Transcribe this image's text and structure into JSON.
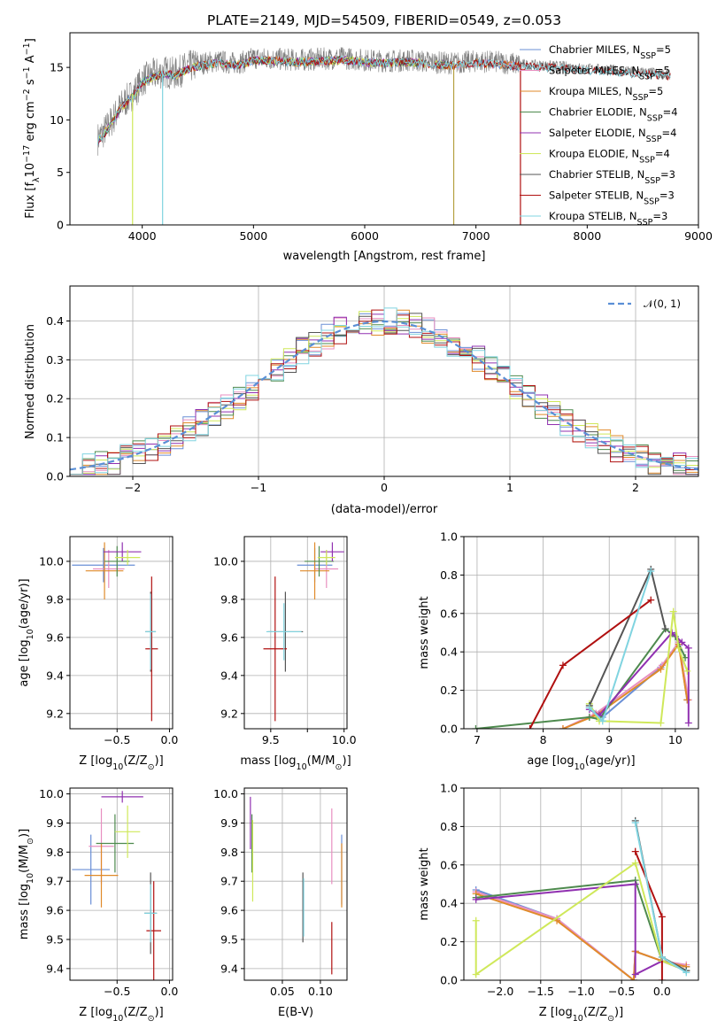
{
  "colors": {
    "Chabrier MILES": "#6a8fd6",
    "Salpeter MILES": "#e88fc0",
    "Kroupa MILES": "#e08a2a",
    "Chabrier ELODIE": "#4e8a4e",
    "Salpeter ELODIE": "#9030b0",
    "Kroupa ELODIE": "#cfe85a",
    "Chabrier STELIB": "#555555",
    "Salpeter STELIB": "#b01010",
    "Kroupa STELIB": "#80d4e0"
  },
  "chart_data": [
    {
      "id": "spectrum",
      "type": "line",
      "title": "PLATE=2149, MJD=54509, FIBERID=0549, z=0.053",
      "xlabel": "wavelength [Angstrom, rest frame]",
      "ylabel": "Flux [f",
      "ylabel_sub": "λ",
      "ylabel_mid": "10",
      "ylabel_sup": "−17",
      "ylabel_tail": " erg cm",
      "ylabel_sup2": "−2",
      "ylabel_tail2": " s",
      "ylabel_sup3": "−1",
      "ylabel_tail3": " A",
      "ylabel_sup4": "−1",
      "ylabel_end": "]",
      "xlim": [
        3350,
        9000
      ],
      "ylim": [
        0,
        18.3
      ],
      "xticks": [
        4000,
        5000,
        6000,
        7000,
        8000,
        9000
      ],
      "yticks": [
        0,
        5,
        10,
        15
      ],
      "legend_position": "right",
      "series": [
        {
          "name": "Chabrier MILES, N",
          "sub": "SSP",
          "tail": "=5"
        },
        {
          "name": "Salpeter MILES, N",
          "sub": "SSP",
          "tail": "=5"
        },
        {
          "name": "Kroupa MILES, N",
          "sub": "SSP",
          "tail": "=5"
        },
        {
          "name": "Chabrier ELODIE, N",
          "sub": "SSP",
          "tail": "=4"
        },
        {
          "name": "Salpeter ELODIE, N",
          "sub": "SSP",
          "tail": "=4"
        },
        {
          "name": "Kroupa ELODIE, N",
          "sub": "SSP",
          "tail": "=4"
        },
        {
          "name": "Chabrier STELIB, N",
          "sub": "SSP",
          "tail": "=3"
        },
        {
          "name": "Salpeter STELIB, N",
          "sub": "SSP",
          "tail": "=3"
        },
        {
          "name": "Kroupa STELIB, N",
          "sub": "SSP",
          "tail": "=3"
        }
      ],
      "observed": {
        "wavelength": [
          3600,
          3650,
          3700,
          3750,
          3800,
          3850,
          3900,
          3950,
          4000,
          4100,
          4200,
          4300,
          4400,
          4500,
          4600,
          4700,
          4800,
          4900,
          5000,
          5200,
          5400,
          5600,
          5800,
          6000,
          6200,
          6400,
          6600,
          6800,
          7000,
          7200,
          7400,
          7600,
          7800,
          8000,
          8200,
          8400,
          8600,
          8750
        ],
        "flux": [
          8.2,
          8.8,
          9.5,
          10.3,
          11.2,
          11.8,
          12.3,
          12.9,
          13.8,
          14.3,
          14.6,
          14.4,
          15.0,
          15.3,
          15.5,
          15.6,
          15.4,
          15.5,
          15.9,
          15.8,
          15.7,
          15.8,
          15.9,
          15.7,
          15.6,
          15.7,
          15.5,
          15.4,
          15.6,
          15.5,
          15.3,
          15.2,
          15.1,
          14.9,
          14.8,
          14.6,
          14.5,
          14.3
        ]
      },
      "deep_features": [
        3913,
        4183,
        6800,
        7400
      ]
    },
    {
      "id": "residuals",
      "type": "bar",
      "xlabel": "(data-model)/error",
      "ylabel": "Normed distribution",
      "xlim": [
        -2.5,
        2.5
      ],
      "ylim": [
        0,
        0.49
      ],
      "xticks": [
        -2,
        -1,
        0,
        1,
        2
      ],
      "yticks": [
        0.0,
        0.1,
        0.2,
        0.3,
        0.4
      ],
      "legend_label": "𝒩(0, 1)",
      "legend_position": "top-right",
      "bin_width": 0.1
    },
    {
      "id": "age_vs_Z",
      "type": "scatter",
      "xlabel": "Z [log",
      "xlabel_sub": "10",
      "xlabel_tail": "(Z/Z",
      "xlabel_sub2": "⊙",
      "xlabel_end": ")]",
      "ylabel": "age  [log",
      "ylabel_sub": "10",
      "ylabel_tail": "(age/yr)]",
      "xlim": [
        -0.95,
        0.03
      ],
      "ylim": [
        9.12,
        10.13
      ],
      "xticks": [
        -0.5,
        0.0
      ],
      "yticks": [
        9.2,
        9.4,
        9.6,
        9.8,
        10.0
      ],
      "points": [
        {
          "s": "Chabrier MILES",
          "x": -0.63,
          "y": 9.98,
          "xerr": 0.3,
          "yerr": 0.09
        },
        {
          "s": "Salpeter MILES",
          "x": -0.58,
          "y": 9.96,
          "xerr": 0.15,
          "yerr": 0.1
        },
        {
          "s": "Kroupa MILES",
          "x": -0.62,
          "y": 9.95,
          "xerr": 0.18,
          "yerr": 0.15
        },
        {
          "s": "Chabrier ELODIE",
          "x": -0.5,
          "y": 10.0,
          "xerr": 0.12,
          "yerr": 0.08
        },
        {
          "s": "Salpeter ELODIE",
          "x": -0.45,
          "y": 10.05,
          "xerr": 0.18,
          "yerr": 0.05
        },
        {
          "s": "Kroupa ELODIE",
          "x": -0.4,
          "y": 10.02,
          "xerr": 0.12,
          "yerr": 0.04
        },
        {
          "s": "Chabrier STELIB",
          "x": -0.18,
          "y": 9.63,
          "xerr": 0.05,
          "yerr": 0.21
        },
        {
          "s": "Salpeter STELIB",
          "x": -0.17,
          "y": 9.54,
          "xerr": 0.06,
          "yerr": 0.38
        },
        {
          "s": "Kroupa STELIB",
          "x": -0.18,
          "y": 9.63,
          "xerr": 0.05,
          "yerr": 0.2
        }
      ]
    },
    {
      "id": "age_vs_mass",
      "type": "scatter",
      "xlabel": "mass [log",
      "xlabel_sub": "10",
      "xlabel_tail": "(M/M",
      "xlabel_sub2": "⊙",
      "xlabel_end": ")]",
      "xlim": [
        9.32,
        10.02
      ],
      "ylim": [
        9.12,
        10.13
      ],
      "xticks": [
        9.5,
        9.75,
        10.0
      ],
      "xticklabels": [
        "9.5",
        "",
        "10.0"
      ],
      "yticks": [
        9.2,
        9.4,
        9.6,
        9.8,
        10.0
      ],
      "points": [
        {
          "s": "Chabrier MILES",
          "x": 9.8,
          "y": 9.98,
          "xerr": 0.12,
          "yerr": 0.09
        },
        {
          "s": "Salpeter MILES",
          "x": 9.88,
          "y": 9.96,
          "xerr": 0.08,
          "yerr": 0.1
        },
        {
          "s": "Kroupa MILES",
          "x": 9.8,
          "y": 9.95,
          "xerr": 0.1,
          "yerr": 0.15
        },
        {
          "s": "Chabrier ELODIE",
          "x": 9.83,
          "y": 10.0,
          "xerr": 0.1,
          "yerr": 0.08
        },
        {
          "s": "Salpeter ELODIE",
          "x": 9.92,
          "y": 10.05,
          "xerr": 0.08,
          "yerr": 0.05
        },
        {
          "s": "Kroupa ELODIE",
          "x": 9.88,
          "y": 10.02,
          "xerr": 0.06,
          "yerr": 0.04
        },
        {
          "s": "Chabrier STELIB",
          "x": 9.6,
          "y": 9.63,
          "xerr": 0.12,
          "yerr": 0.21
        },
        {
          "s": "Salpeter STELIB",
          "x": 9.53,
          "y": 9.54,
          "xerr": 0.08,
          "yerr": 0.38
        },
        {
          "s": "Kroupa STELIB",
          "x": 9.59,
          "y": 9.63,
          "xerr": 0.12,
          "yerr": 0.15
        }
      ]
    },
    {
      "id": "weights_vs_age",
      "type": "line",
      "xlabel": "age  [log",
      "xlabel_sub": "10",
      "xlabel_tail": "(age/yr)]",
      "ylabel": "mass weight",
      "xlim": [
        6.8,
        10.35
      ],
      "ylim": [
        0,
        1.0
      ],
      "xticks": [
        7,
        8,
        9,
        10
      ],
      "yticks": [
        0.0,
        0.2,
        0.4,
        0.6,
        0.8,
        1.0
      ],
      "series": [
        {
          "s": "Chabrier MILES",
          "x": [
            8.7,
            8.9,
            9.78,
            10.05,
            10.18
          ],
          "y": [
            0.11,
            0.06,
            0.32,
            0.45,
            0.15
          ]
        },
        {
          "s": "Salpeter MILES",
          "x": [
            8.3,
            8.8,
            9.8,
            10.05,
            10.2
          ],
          "y": [
            0.0,
            0.08,
            0.33,
            0.45,
            0.15
          ]
        },
        {
          "s": "Kroupa MILES",
          "x": [
            8.3,
            8.8,
            9.78,
            10.05,
            10.18
          ],
          "y": [
            0.0,
            0.07,
            0.31,
            0.44,
            0.15
          ]
        },
        {
          "s": "Chabrier ELODIE",
          "x": [
            6.98,
            8.7,
            8.85,
            9.85,
            10.0,
            10.15
          ],
          "y": [
            0.0,
            0.06,
            0.05,
            0.52,
            0.48,
            0.37
          ]
        },
        {
          "s": "Salpeter ELODIE",
          "x": [
            8.7,
            8.85,
            9.95,
            10.1,
            10.2,
            10.2
          ],
          "y": [
            0.1,
            0.07,
            0.5,
            0.45,
            0.42,
            0.03
          ]
        },
        {
          "s": "Kroupa ELODIE",
          "x": [
            8.7,
            8.85,
            9.78,
            9.97,
            10.05,
            10.18
          ],
          "y": [
            0.13,
            0.04,
            0.03,
            0.61,
            0.42,
            0.3
          ]
        },
        {
          "s": "Chabrier STELIB",
          "x": [
            8.7,
            9.63,
            9.85
          ],
          "y": [
            0.12,
            0.83,
            0.52
          ]
        },
        {
          "s": "Salpeter STELIB",
          "x": [
            7.8,
            8.3,
            9.63
          ],
          "y": [
            0.0,
            0.33,
            0.67
          ]
        },
        {
          "s": "Kroupa STELIB",
          "x": [
            8.7,
            8.9,
            9.63
          ],
          "y": [
            0.11,
            0.04,
            0.82
          ]
        }
      ]
    },
    {
      "id": "mass_vs_Z",
      "type": "scatter",
      "xlabel": "Z [log",
      "xlabel_sub": "10",
      "xlabel_tail": "(Z/Z",
      "xlabel_sub2": "⊙",
      "xlabel_end": ")]",
      "ylabel": "mass [log",
      "ylabel_sub": "10",
      "ylabel_tail": "(M/M",
      "ylabel_sub2": "⊙",
      "ylabel_end": ")]",
      "xlim": [
        -0.95,
        0.03
      ],
      "ylim": [
        9.36,
        10.02
      ],
      "xticks": [
        -0.5,
        0.0
      ],
      "yticks": [
        9.4,
        9.5,
        9.6,
        9.7,
        9.8,
        9.9,
        10.0
      ],
      "points": [
        {
          "s": "Chabrier MILES",
          "x": -0.75,
          "y": 9.74,
          "xerr": 0.18,
          "yerr": 0.12
        },
        {
          "s": "Salpeter MILES",
          "x": -0.65,
          "y": 9.82,
          "xerr": 0.12,
          "yerr": 0.13
        },
        {
          "s": "Kroupa MILES",
          "x": -0.65,
          "y": 9.72,
          "xerr": 0.16,
          "yerr": 0.11
        },
        {
          "s": "Chabrier ELODIE",
          "x": -0.52,
          "y": 9.83,
          "xerr": 0.18,
          "yerr": 0.1
        },
        {
          "s": "Salpeter ELODIE",
          "x": -0.45,
          "y": 9.99,
          "xerr": 0.2,
          "yerr": 0.02
        },
        {
          "s": "Kroupa ELODIE",
          "x": -0.4,
          "y": 9.87,
          "xerr": 0.12,
          "yerr": 0.09
        },
        {
          "s": "Chabrier STELIB",
          "x": -0.18,
          "y": 9.59,
          "xerr": 0.06,
          "yerr": 0.14
        },
        {
          "s": "Salpeter STELIB",
          "x": -0.15,
          "y": 9.53,
          "xerr": 0.07,
          "yerr": 0.17
        },
        {
          "s": "Kroupa STELIB",
          "x": -0.18,
          "y": 9.59,
          "xerr": 0.06,
          "yerr": 0.1
        }
      ]
    },
    {
      "id": "mass_vs_ebv",
      "type": "scatter",
      "xlabel": "E(B-V)",
      "xlim": [
        0.0,
        0.135
      ],
      "ylim": [
        9.36,
        10.02
      ],
      "xticks": [
        0.05,
        0.1
      ],
      "yticks": [
        9.4,
        9.5,
        9.6,
        9.7,
        9.8,
        9.9,
        10.0
      ],
      "points": [
        {
          "s": "Chabrier MILES",
          "x": 0.128,
          "y": 9.74,
          "yerr": 0.12
        },
        {
          "s": "Salpeter MILES",
          "x": 0.115,
          "y": 9.82,
          "yerr": 0.13
        },
        {
          "s": "Kroupa MILES",
          "x": 0.128,
          "y": 9.72,
          "yerr": 0.11
        },
        {
          "s": "Chabrier ELODIE",
          "x": 0.01,
          "y": 9.83,
          "yerr": 0.1
        },
        {
          "s": "Salpeter ELODIE",
          "x": 0.008,
          "y": 9.9,
          "yerr": 0.09
        },
        {
          "s": "Kroupa ELODIE",
          "x": 0.011,
          "y": 9.77,
          "yerr": 0.14
        },
        {
          "s": "Chabrier STELIB",
          "x": 0.077,
          "y": 9.61,
          "yerr": 0.12
        },
        {
          "s": "Salpeter STELIB",
          "x": 0.115,
          "y": 9.47,
          "yerr": 0.09
        },
        {
          "s": "Kroupa STELIB",
          "x": 0.078,
          "y": 9.61,
          "yerr": 0.1
        }
      ]
    },
    {
      "id": "weights_vs_Z",
      "type": "line",
      "xlabel": "Z [log",
      "xlabel_sub": "10",
      "xlabel_tail": "(Z/Z",
      "xlabel_sub2": "⊙",
      "xlabel_end": ")]",
      "ylabel": "mass weight",
      "xlim": [
        -2.45,
        0.45
      ],
      "ylim": [
        0,
        1.0
      ],
      "xticks": [
        -2.0,
        -1.5,
        -1.0,
        -0.5,
        0.0
      ],
      "xticklabels": [
        "−2.0",
        "−1.5",
        "−1.0",
        "−0.5",
        "0.0"
      ],
      "yticks": [
        0.0,
        0.2,
        0.4,
        0.6,
        0.8,
        1.0
      ],
      "series": [
        {
          "s": "Chabrier MILES",
          "x": [
            -2.3,
            -1.3,
            -0.35,
            -0.33,
            0.0,
            0.3
          ],
          "y": [
            0.47,
            0.32,
            0.0,
            0.15,
            0.1,
            0.07
          ]
        },
        {
          "s": "Salpeter MILES",
          "x": [
            -2.3,
            -1.3,
            -0.35,
            -0.33,
            0.0,
            0.3
          ],
          "y": [
            0.46,
            0.32,
            0.0,
            0.15,
            0.1,
            0.08
          ]
        },
        {
          "s": "Kroupa MILES",
          "x": [
            -2.3,
            -1.3,
            -0.35,
            -0.33,
            0.0,
            0.3
          ],
          "y": [
            0.45,
            0.31,
            0.0,
            0.15,
            0.1,
            0.07
          ]
        },
        {
          "s": "Chabrier ELODIE",
          "x": [
            -2.3,
            -0.33,
            0.0,
            0.3
          ],
          "y": [
            0.43,
            0.52,
            0.1,
            0.05
          ]
        },
        {
          "s": "Salpeter ELODIE",
          "x": [
            -2.3,
            -0.33,
            -0.33,
            0.0,
            0.3
          ],
          "y": [
            0.42,
            0.5,
            0.03,
            0.1,
            0.05
          ]
        },
        {
          "s": "Kroupa ELODIE",
          "x": [
            -2.3,
            -2.3,
            -0.33,
            0.0,
            0.3
          ],
          "y": [
            0.31,
            0.03,
            0.61,
            0.1,
            0.05
          ]
        },
        {
          "s": "Chabrier STELIB",
          "x": [
            -0.33,
            0.0,
            0.3
          ],
          "y": [
            0.83,
            0.12,
            0.05
          ]
        },
        {
          "s": "Salpeter STELIB",
          "x": [
            -0.33,
            0.0,
            0.0
          ],
          "y": [
            0.67,
            0.33,
            0.0
          ]
        },
        {
          "s": "Kroupa STELIB",
          "x": [
            -0.33,
            0.0,
            0.3
          ],
          "y": [
            0.82,
            0.12,
            0.04
          ]
        }
      ]
    }
  ]
}
